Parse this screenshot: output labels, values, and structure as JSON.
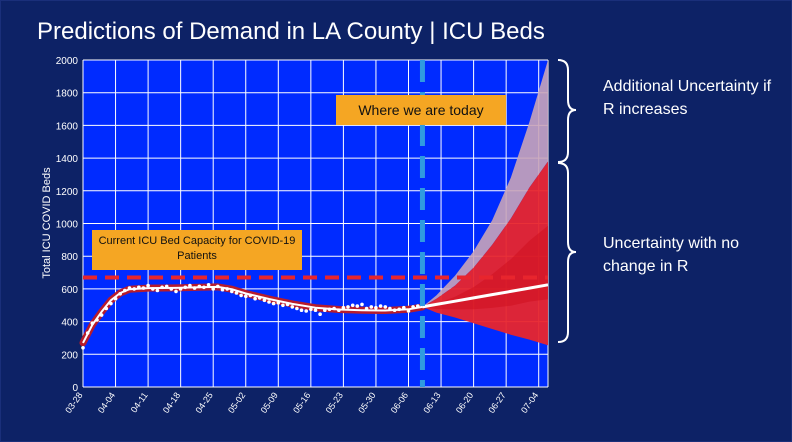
{
  "slide": {
    "title": "Predictions of Demand in LA County | ICU Beds",
    "note_additional": "Additional Uncertainty if R increases",
    "note_no_change": "Uncertainty with no change in R"
  },
  "colors": {
    "background": "#0d2266",
    "plot_background": "#002bff",
    "grid": "#ffffff",
    "fit_line": "#b71c2c",
    "observed": "#ffffff",
    "projection": "#ffffff",
    "uncertainty_band": "#e8252d",
    "additional_band": "#c9a4b8",
    "capacity_line": "#e8252d",
    "today_line": "#2f9be0",
    "callout": "#f5a623"
  },
  "chart_data": {
    "type": "line",
    "ylabel": "Total ICU COVID Beds",
    "xlabel": "",
    "ylim": [
      0,
      2000
    ],
    "yticks": [
      0,
      200,
      400,
      600,
      800,
      1000,
      1200,
      1400,
      1600,
      1800,
      2000
    ],
    "x_range_days": [
      0,
      100
    ],
    "xticks": [
      {
        "label": "03-28",
        "day": 0
      },
      {
        "label": "04-04",
        "day": 7
      },
      {
        "label": "04-11",
        "day": 14
      },
      {
        "label": "04-18",
        "day": 21
      },
      {
        "label": "04-25",
        "day": 28
      },
      {
        "label": "05-02",
        "day": 35
      },
      {
        "label": "05-09",
        "day": 42
      },
      {
        "label": "05-16",
        "day": 49
      },
      {
        "label": "05-23",
        "day": 56
      },
      {
        "label": "05-30",
        "day": 63
      },
      {
        "label": "06-06",
        "day": 70
      },
      {
        "label": "06-13",
        "day": 77
      },
      {
        "label": "06-20",
        "day": 84
      },
      {
        "label": "06-27",
        "day": 91
      },
      {
        "label": "07-04",
        "day": 98
      }
    ],
    "capacity_line": {
      "value": 670,
      "label": "Current ICU Bed Capacity for COVID-19 Patients"
    },
    "today_line": {
      "day": 73,
      "label": "Where we are today"
    },
    "observed": [
      {
        "day": 0,
        "value": 240
      },
      {
        "day": 1,
        "value": 330
      },
      {
        "day": 2,
        "value": 390
      },
      {
        "day": 3,
        "value": 410
      },
      {
        "day": 4,
        "value": 440
      },
      {
        "day": 5,
        "value": 480
      },
      {
        "day": 6,
        "value": 510
      },
      {
        "day": 7,
        "value": 540
      },
      {
        "day": 8,
        "value": 570
      },
      {
        "day": 9,
        "value": 590
      },
      {
        "day": 10,
        "value": 605
      },
      {
        "day": 11,
        "value": 600
      },
      {
        "day": 12,
        "value": 610
      },
      {
        "day": 13,
        "value": 605
      },
      {
        "day": 14,
        "value": 620
      },
      {
        "day": 15,
        "value": 600
      },
      {
        "day": 16,
        "value": 590
      },
      {
        "day": 17,
        "value": 610
      },
      {
        "day": 18,
        "value": 615
      },
      {
        "day": 19,
        "value": 600
      },
      {
        "day": 20,
        "value": 585
      },
      {
        "day": 21,
        "value": 600
      },
      {
        "day": 22,
        "value": 610
      },
      {
        "day": 23,
        "value": 620
      },
      {
        "day": 24,
        "value": 605
      },
      {
        "day": 25,
        "value": 615
      },
      {
        "day": 26,
        "value": 610
      },
      {
        "day": 27,
        "value": 625
      },
      {
        "day": 28,
        "value": 600
      },
      {
        "day": 29,
        "value": 615
      },
      {
        "day": 30,
        "value": 595
      },
      {
        "day": 31,
        "value": 600
      },
      {
        "day": 32,
        "value": 585
      },
      {
        "day": 33,
        "value": 575
      },
      {
        "day": 34,
        "value": 560
      },
      {
        "day": 35,
        "value": 555
      },
      {
        "day": 36,
        "value": 560
      },
      {
        "day": 37,
        "value": 540
      },
      {
        "day": 38,
        "value": 545
      },
      {
        "day": 39,
        "value": 530
      },
      {
        "day": 40,
        "value": 520
      },
      {
        "day": 41,
        "value": 510
      },
      {
        "day": 42,
        "value": 515
      },
      {
        "day": 43,
        "value": 500
      },
      {
        "day": 44,
        "value": 505
      },
      {
        "day": 45,
        "value": 490
      },
      {
        "day": 46,
        "value": 480
      },
      {
        "day": 47,
        "value": 470
      },
      {
        "day": 48,
        "value": 465
      },
      {
        "day": 49,
        "value": 475
      },
      {
        "day": 50,
        "value": 470
      },
      {
        "day": 51,
        "value": 445
      },
      {
        "day": 52,
        "value": 470
      },
      {
        "day": 53,
        "value": 475
      },
      {
        "day": 54,
        "value": 480
      },
      {
        "day": 55,
        "value": 470
      },
      {
        "day": 56,
        "value": 485
      },
      {
        "day": 57,
        "value": 490
      },
      {
        "day": 58,
        "value": 500
      },
      {
        "day": 59,
        "value": 495
      },
      {
        "day": 60,
        "value": 505
      },
      {
        "day": 61,
        "value": 480
      },
      {
        "day": 62,
        "value": 490
      },
      {
        "day": 63,
        "value": 485
      },
      {
        "day": 64,
        "value": 495
      },
      {
        "day": 65,
        "value": 490
      },
      {
        "day": 66,
        "value": 480
      },
      {
        "day": 67,
        "value": 470
      },
      {
        "day": 68,
        "value": 475
      },
      {
        "day": 69,
        "value": 485
      },
      {
        "day": 70,
        "value": 465
      },
      {
        "day": 71,
        "value": 490
      },
      {
        "day": 72,
        "value": 495
      }
    ],
    "fit": [
      {
        "day": 0,
        "value": 270
      },
      {
        "day": 2,
        "value": 380
      },
      {
        "day": 4,
        "value": 460
      },
      {
        "day": 6,
        "value": 530
      },
      {
        "day": 8,
        "value": 575
      },
      {
        "day": 10,
        "value": 598
      },
      {
        "day": 14,
        "value": 605
      },
      {
        "day": 20,
        "value": 606
      },
      {
        "day": 25,
        "value": 610
      },
      {
        "day": 29,
        "value": 612
      },
      {
        "day": 32,
        "value": 598
      },
      {
        "day": 35,
        "value": 572
      },
      {
        "day": 40,
        "value": 538
      },
      {
        "day": 45,
        "value": 508
      },
      {
        "day": 50,
        "value": 485
      },
      {
        "day": 55,
        "value": 474
      },
      {
        "day": 60,
        "value": 470
      },
      {
        "day": 65,
        "value": 468
      },
      {
        "day": 70,
        "value": 475
      },
      {
        "day": 73,
        "value": 490
      }
    ],
    "projection": [
      {
        "day": 73,
        "value": 490
      },
      {
        "day": 76,
        "value": 505
      },
      {
        "day": 80,
        "value": 525
      },
      {
        "day": 84,
        "value": 545
      },
      {
        "day": 88,
        "value": 565
      },
      {
        "day": 92,
        "value": 585
      },
      {
        "day": 96,
        "value": 605
      },
      {
        "day": 100,
        "value": 625
      }
    ],
    "band_no_change": {
      "upper": [
        {
          "day": 73,
          "value": 490
        },
        {
          "day": 76,
          "value": 540
        },
        {
          "day": 80,
          "value": 620
        },
        {
          "day": 84,
          "value": 730
        },
        {
          "day": 88,
          "value": 870
        },
        {
          "day": 92,
          "value": 1030
        },
        {
          "day": 96,
          "value": 1220
        },
        {
          "day": 100,
          "value": 1380
        }
      ],
      "lower": [
        {
          "day": 73,
          "value": 490
        },
        {
          "day": 76,
          "value": 455
        },
        {
          "day": 80,
          "value": 425
        },
        {
          "day": 84,
          "value": 390
        },
        {
          "day": 88,
          "value": 355
        },
        {
          "day": 92,
          "value": 320
        },
        {
          "day": 96,
          "value": 290
        },
        {
          "day": 100,
          "value": 255
        }
      ]
    },
    "band_additional": {
      "upper": [
        {
          "day": 73,
          "value": 490
        },
        {
          "day": 76,
          "value": 560
        },
        {
          "day": 80,
          "value": 680
        },
        {
          "day": 84,
          "value": 830
        },
        {
          "day": 88,
          "value": 1020
        },
        {
          "day": 92,
          "value": 1280
        },
        {
          "day": 96,
          "value": 1620
        },
        {
          "day": 100,
          "value": 2000
        }
      ]
    }
  }
}
